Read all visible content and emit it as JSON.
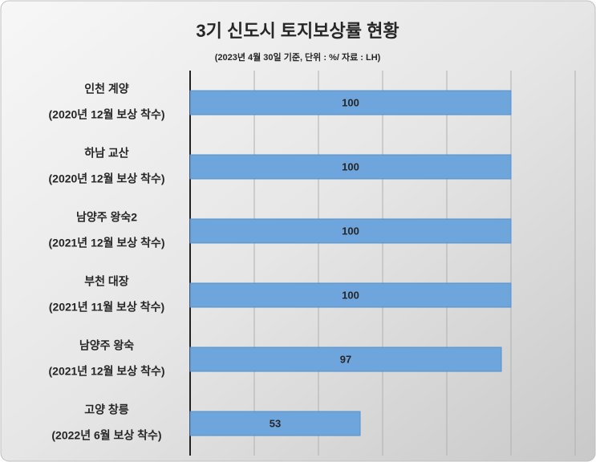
{
  "chart_data": {
    "type": "barh",
    "title": "3기 신도시 토지보상률 현황",
    "subtitle": "(2023년 4월 30일 기준, 단위 : %/ 자료 : LH)",
    "categories": [
      [
        "인천 계양",
        "(2020년 12월 보상 착수)"
      ],
      [
        "하남 교산",
        "(2020년 12월 보상 착수)"
      ],
      [
        "남양주 왕숙2",
        "(2021년 12월 보상 착수)"
      ],
      [
        "부천 대장",
        "(2021년 11월 보상 착수)"
      ],
      [
        "남양주 왕숙",
        "(2021년 12월 보상 착수)"
      ],
      [
        "고양 창릉",
        "(2022년 6월 보상 착수)"
      ]
    ],
    "values": [
      100,
      100,
      100,
      100,
      97,
      53
    ],
    "color": "#6fa5dd",
    "xlim": [
      0,
      120
    ],
    "xticks": [
      0,
      20,
      40,
      60,
      80,
      100,
      120
    ],
    "grid": true
  }
}
